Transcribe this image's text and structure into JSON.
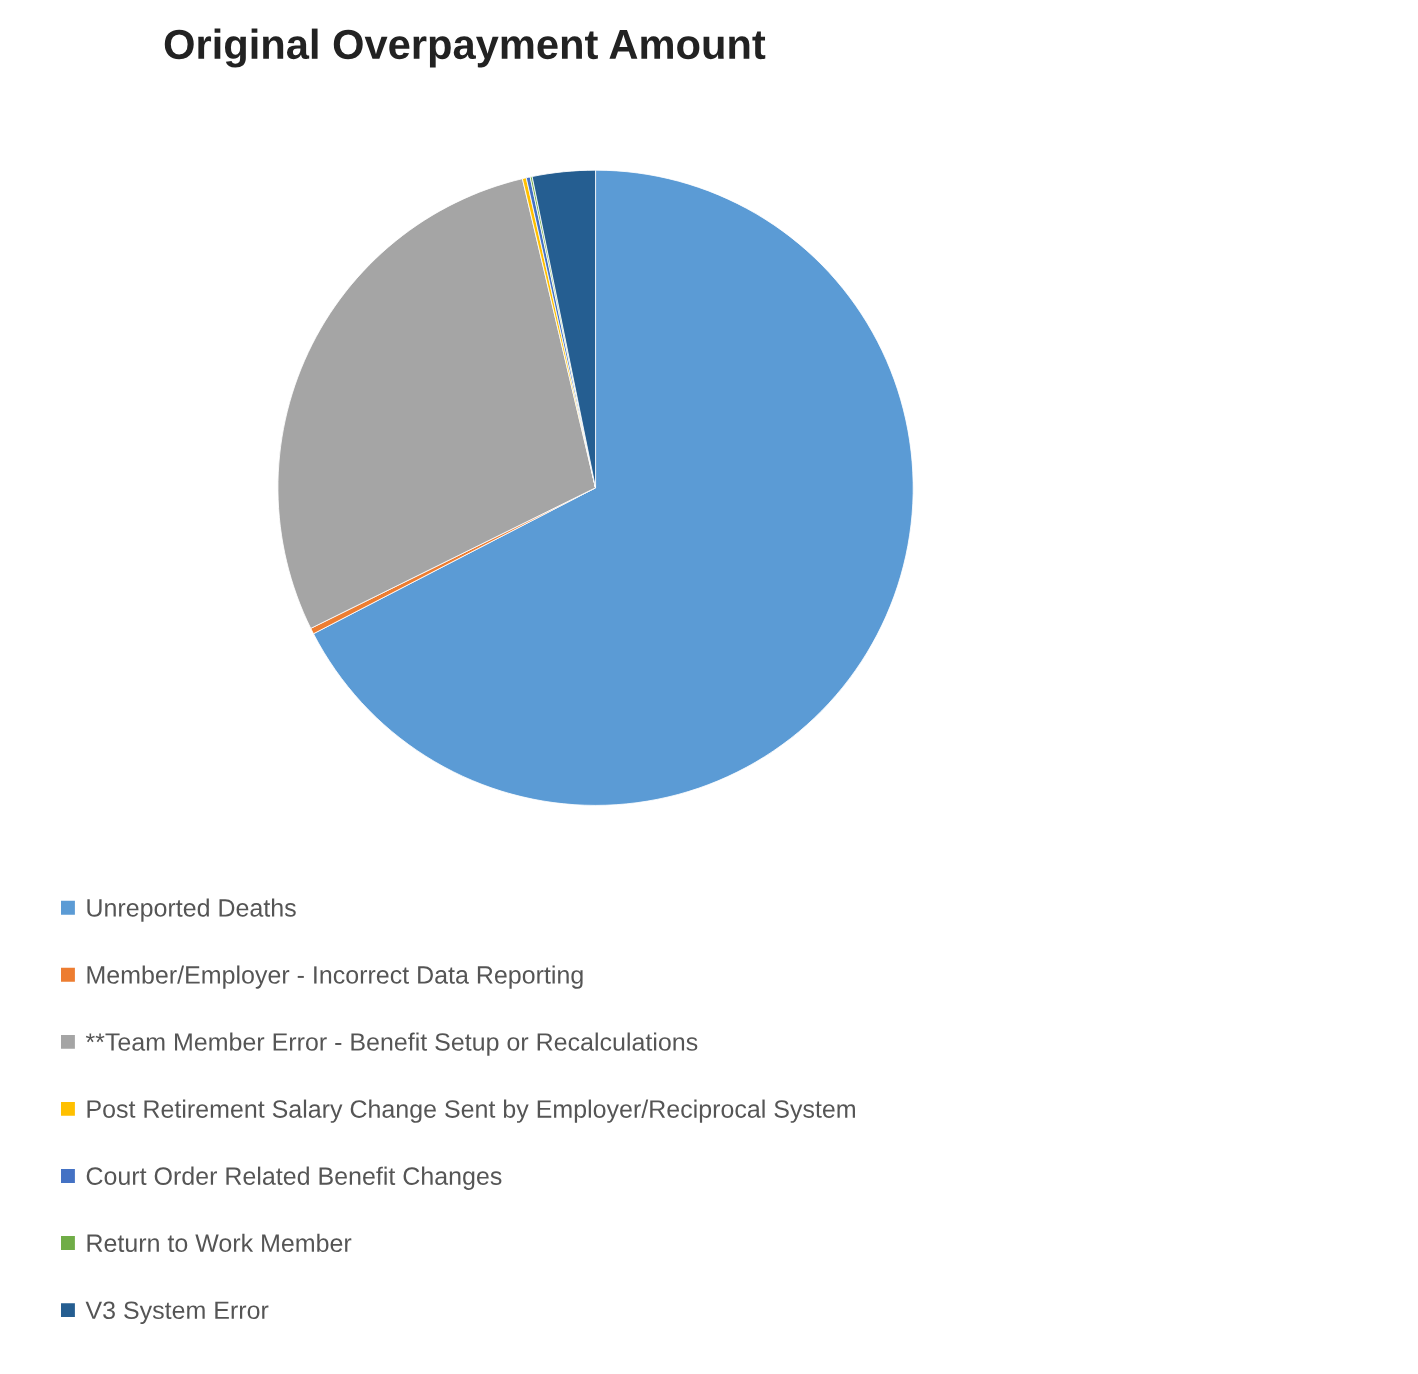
{
  "chart_data": {
    "type": "pie",
    "title": "Original Overpayment Amount",
    "categories": [
      "Unreported Deaths",
      "Member/Employer - Incorrect Data Reporting",
      "**Team Member Error - Benefit Setup or Recalculations",
      "Post Retirement Salary Change Sent by Employer/Reciprocal System",
      "Court Order Related Benefit Changes",
      "Return to Work Member",
      "V3 System Error"
    ],
    "values": [
      67.4,
      0.3,
      28.6,
      0.2,
      0.2,
      0.1,
      3.2
    ],
    "colors": [
      "#5b9bd5",
      "#ed7d31",
      "#a5a5a5",
      "#ffc000",
      "#4472c4",
      "#70ad47",
      "#255e91"
    ],
    "legend": "bottom left"
  }
}
